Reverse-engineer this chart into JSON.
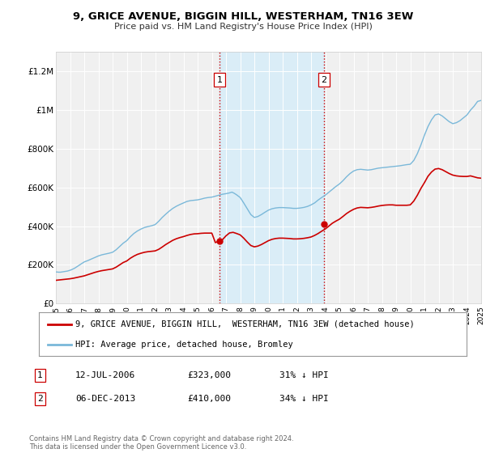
{
  "title": "9, GRICE AVENUE, BIGGIN HILL, WESTERHAM, TN16 3EW",
  "subtitle": "Price paid vs. HM Land Registry's House Price Index (HPI)",
  "hpi_x": [
    1995.0,
    1995.08,
    1995.17,
    1995.25,
    1995.33,
    1995.42,
    1995.5,
    1995.58,
    1995.67,
    1995.75,
    1995.83,
    1995.92,
    1996.0,
    1996.08,
    1996.17,
    1996.25,
    1996.33,
    1996.42,
    1996.5,
    1996.58,
    1996.67,
    1996.75,
    1996.83,
    1996.92,
    1997.0,
    1997.25,
    1997.5,
    1997.75,
    1998.0,
    1998.25,
    1998.5,
    1998.75,
    1999.0,
    1999.25,
    1999.5,
    1999.75,
    2000.0,
    2000.25,
    2000.5,
    2000.75,
    2001.0,
    2001.25,
    2001.5,
    2001.75,
    2002.0,
    2002.25,
    2002.5,
    2002.75,
    2003.0,
    2003.25,
    2003.5,
    2003.75,
    2004.0,
    2004.25,
    2004.5,
    2004.75,
    2005.0,
    2005.25,
    2005.5,
    2005.75,
    2006.0,
    2006.25,
    2006.5,
    2006.75,
    2007.0,
    2007.25,
    2007.42,
    2007.58,
    2007.75,
    2008.0,
    2008.25,
    2008.5,
    2008.75,
    2009.0,
    2009.25,
    2009.5,
    2009.75,
    2010.0,
    2010.25,
    2010.5,
    2010.75,
    2011.0,
    2011.25,
    2011.5,
    2011.75,
    2012.0,
    2012.25,
    2012.5,
    2012.75,
    2013.0,
    2013.25,
    2013.5,
    2013.75,
    2014.0,
    2014.25,
    2014.5,
    2014.75,
    2015.0,
    2015.25,
    2015.5,
    2015.75,
    2016.0,
    2016.25,
    2016.5,
    2016.75,
    2017.0,
    2017.25,
    2017.5,
    2017.75,
    2018.0,
    2018.25,
    2018.5,
    2018.75,
    2019.0,
    2019.25,
    2019.5,
    2019.75,
    2020.0,
    2020.25,
    2020.5,
    2020.75,
    2021.0,
    2021.25,
    2021.5,
    2021.75,
    2022.0,
    2022.25,
    2022.5,
    2022.75,
    2023.0,
    2023.25,
    2023.5,
    2023.75,
    2024.0,
    2024.25,
    2024.5,
    2024.75,
    2025.0
  ],
  "hpi_y": [
    163000,
    163000,
    162000,
    162000,
    162000,
    163000,
    164000,
    165000,
    166000,
    167000,
    168000,
    170000,
    172000,
    174000,
    177000,
    180000,
    183000,
    187000,
    191000,
    195000,
    199000,
    203000,
    207000,
    211000,
    215000,
    222000,
    230000,
    238000,
    246000,
    252000,
    256000,
    260000,
    265000,
    278000,
    295000,
    312000,
    325000,
    345000,
    362000,
    375000,
    385000,
    393000,
    398000,
    402000,
    408000,
    425000,
    445000,
    462000,
    478000,
    492000,
    503000,
    512000,
    520000,
    528000,
    532000,
    534000,
    536000,
    540000,
    545000,
    548000,
    550000,
    555000,
    560000,
    565000,
    568000,
    572000,
    576000,
    570000,
    562000,
    548000,
    520000,
    490000,
    460000,
    445000,
    450000,
    460000,
    472000,
    483000,
    490000,
    494000,
    496000,
    496000,
    495000,
    494000,
    492000,
    492000,
    494000,
    497000,
    502000,
    510000,
    520000,
    535000,
    548000,
    560000,
    575000,
    590000,
    605000,
    618000,
    635000,
    655000,
    672000,
    685000,
    692000,
    694000,
    692000,
    690000,
    692000,
    696000,
    700000,
    702000,
    704000,
    706000,
    708000,
    710000,
    712000,
    715000,
    718000,
    720000,
    740000,
    775000,
    820000,
    870000,
    915000,
    950000,
    975000,
    980000,
    970000,
    955000,
    940000,
    930000,
    935000,
    945000,
    960000,
    975000,
    1000000,
    1020000,
    1045000,
    1050000
  ],
  "red_x": [
    1995.0,
    1995.25,
    1995.5,
    1995.75,
    1996.0,
    1996.25,
    1996.5,
    1996.75,
    1997.0,
    1997.25,
    1997.5,
    1997.75,
    1998.0,
    1998.25,
    1998.5,
    1998.75,
    1999.0,
    1999.25,
    1999.5,
    1999.75,
    2000.0,
    2000.25,
    2000.5,
    2000.75,
    2001.0,
    2001.25,
    2001.5,
    2001.75,
    2002.0,
    2002.25,
    2002.5,
    2002.75,
    2003.0,
    2003.25,
    2003.5,
    2003.75,
    2004.0,
    2004.25,
    2004.5,
    2004.75,
    2005.0,
    2005.25,
    2005.5,
    2005.75,
    2006.0,
    2006.25,
    2006.5,
    2006.75,
    2007.0,
    2007.25,
    2007.5,
    2007.75,
    2008.0,
    2008.25,
    2008.5,
    2008.75,
    2009.0,
    2009.25,
    2009.5,
    2009.75,
    2010.0,
    2010.25,
    2010.5,
    2010.75,
    2011.0,
    2011.25,
    2011.5,
    2011.75,
    2012.0,
    2012.25,
    2012.5,
    2012.75,
    2013.0,
    2013.25,
    2013.5,
    2013.75,
    2014.0,
    2014.25,
    2014.5,
    2014.75,
    2015.0,
    2015.25,
    2015.5,
    2015.75,
    2016.0,
    2016.25,
    2016.5,
    2016.75,
    2017.0,
    2017.25,
    2017.5,
    2017.75,
    2018.0,
    2018.25,
    2018.5,
    2018.75,
    2019.0,
    2019.25,
    2019.5,
    2019.75,
    2020.0,
    2020.25,
    2020.5,
    2020.75,
    2021.0,
    2021.25,
    2021.5,
    2021.75,
    2022.0,
    2022.25,
    2022.5,
    2022.75,
    2023.0,
    2023.25,
    2023.5,
    2023.75,
    2024.0,
    2024.25,
    2024.5,
    2024.75,
    2025.0
  ],
  "red_y": [
    120000,
    122000,
    124000,
    126000,
    128000,
    131000,
    135000,
    139000,
    143000,
    149000,
    155000,
    161000,
    166000,
    170000,
    173000,
    176000,
    179000,
    188000,
    200000,
    212000,
    220000,
    234000,
    245000,
    254000,
    260000,
    265000,
    268000,
    270000,
    272000,
    280000,
    292000,
    305000,
    316000,
    327000,
    335000,
    341000,
    346000,
    352000,
    357000,
    360000,
    361000,
    363000,
    364000,
    364000,
    364000,
    315000,
    323000,
    330000,
    350000,
    365000,
    368000,
    362000,
    355000,
    338000,
    318000,
    300000,
    293000,
    297000,
    305000,
    315000,
    325000,
    332000,
    336000,
    338000,
    338000,
    337000,
    336000,
    334000,
    334000,
    335000,
    337000,
    340000,
    344000,
    352000,
    362000,
    374000,
    385000,
    400000,
    415000,
    426000,
    436000,
    450000,
    465000,
    477000,
    487000,
    494000,
    497000,
    496000,
    495000,
    497000,
    500000,
    504000,
    507000,
    509000,
    510000,
    510000,
    508000,
    508000,
    508000,
    508000,
    510000,
    530000,
    560000,
    595000,
    625000,
    658000,
    680000,
    695000,
    698000,
    692000,
    682000,
    672000,
    664000,
    660000,
    658000,
    657000,
    657000,
    660000,
    655000,
    650000,
    648000
  ],
  "marker1_x": 2006.54,
  "marker1_y": 323000,
  "marker2_x": 2013.92,
  "marker2_y": 410000,
  "vline1_x": 2006.54,
  "vline2_x": 2013.92,
  "shade_x1": 2006.54,
  "shade_x2": 2013.92,
  "ylim": [
    0,
    1300000
  ],
  "xlim_min": 1995,
  "xlim_max": 2025,
  "yticks": [
    0,
    200000,
    400000,
    600000,
    800000,
    1000000,
    1200000
  ],
  "ytick_labels": [
    "£0",
    "£200K",
    "£400K",
    "£600K",
    "£800K",
    "£1M",
    "£1.2M"
  ],
  "xticks": [
    1995,
    1996,
    1997,
    1998,
    1999,
    2000,
    2001,
    2002,
    2003,
    2004,
    2005,
    2006,
    2007,
    2008,
    2009,
    2010,
    2011,
    2012,
    2013,
    2014,
    2015,
    2016,
    2017,
    2018,
    2019,
    2020,
    2021,
    2022,
    2023,
    2024,
    2025
  ],
  "hpi_color": "#7ab8d9",
  "red_color": "#cc0000",
  "shade_color": "#daedf7",
  "vline_color": "#cc0000",
  "marker_color": "#cc0000",
  "legend_label_red": "9, GRICE AVENUE, BIGGIN HILL,  WESTERHAM, TN16 3EW (detached house)",
  "legend_label_blue": "HPI: Average price, detached house, Bromley",
  "table_row1": [
    "1",
    "12-JUL-2006",
    "£323,000",
    "31% ↓ HPI"
  ],
  "table_row2": [
    "2",
    "06-DEC-2013",
    "£410,000",
    "34% ↓ HPI"
  ],
  "footnote": "Contains HM Land Registry data © Crown copyright and database right 2024.\nThis data is licensed under the Open Government Licence v3.0.",
  "background_color": "#ffffff",
  "plot_bg_color": "#f0f0f0"
}
